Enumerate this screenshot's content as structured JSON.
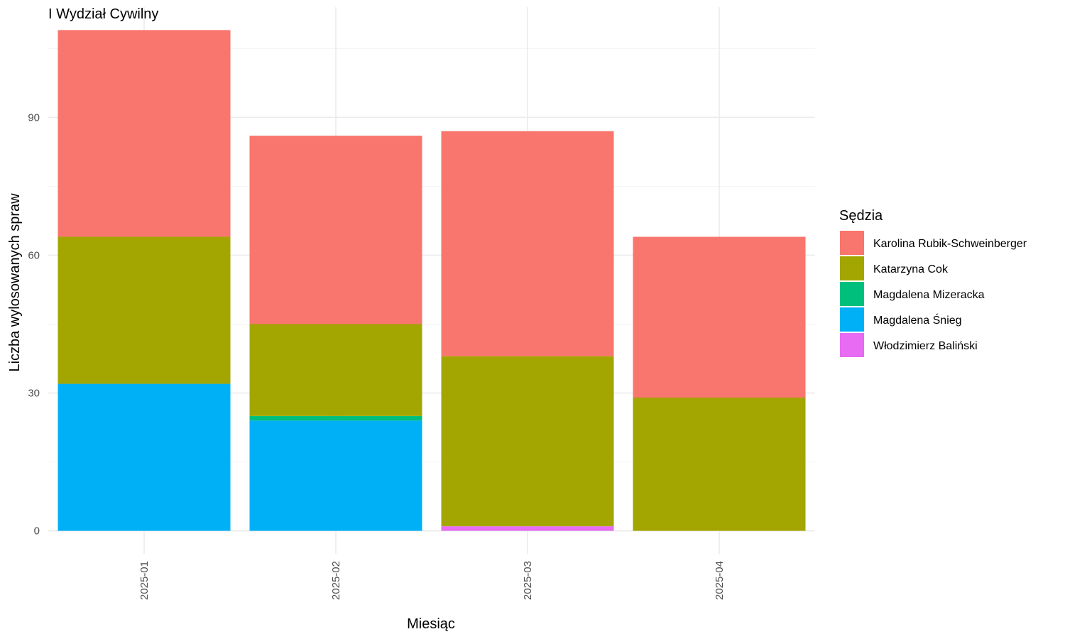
{
  "chart_data": {
    "type": "bar",
    "stacked": true,
    "title": "I Wydział Cywilny",
    "xlabel": "Miesiąc",
    "ylabel": "Liczba wylosowanych spraw",
    "categories": [
      "2025-01",
      "2025-02",
      "2025-03",
      "2025-04"
    ],
    "ylim": [
      -5,
      114
    ],
    "yticks": [
      0,
      30,
      60,
      90
    ],
    "grid": true,
    "legend": {
      "title": "Sędzia",
      "position": "right",
      "order": [
        "Karolina Rubik-Schweinberger",
        "Katarzyna Cok",
        "Magdalena Mizeracka",
        "Magdalena Śnieg",
        "Włodzimierz Baliński"
      ]
    },
    "stack_order_bottom_to_top": [
      "Włodzimierz Baliński",
      "Magdalena Śnieg",
      "Magdalena Mizeracka",
      "Katarzyna Cok",
      "Karolina Rubik-Schweinberger"
    ],
    "series": [
      {
        "name": "Karolina Rubik-Schweinberger",
        "color": "#F8766D",
        "values": [
          45,
          41,
          49,
          35
        ]
      },
      {
        "name": "Katarzyna Cok",
        "color": "#A3A500",
        "values": [
          32,
          20,
          37,
          29
        ]
      },
      {
        "name": "Magdalena Mizeracka",
        "color": "#00BF7D",
        "values": [
          0,
          1,
          0,
          0
        ]
      },
      {
        "name": "Magdalena Śnieg",
        "color": "#00B0F6",
        "values": [
          32,
          24,
          0,
          0
        ]
      },
      {
        "name": "Włodzimierz Baliński",
        "color": "#E76BF3",
        "values": [
          0,
          0,
          1,
          0
        ]
      }
    ]
  }
}
